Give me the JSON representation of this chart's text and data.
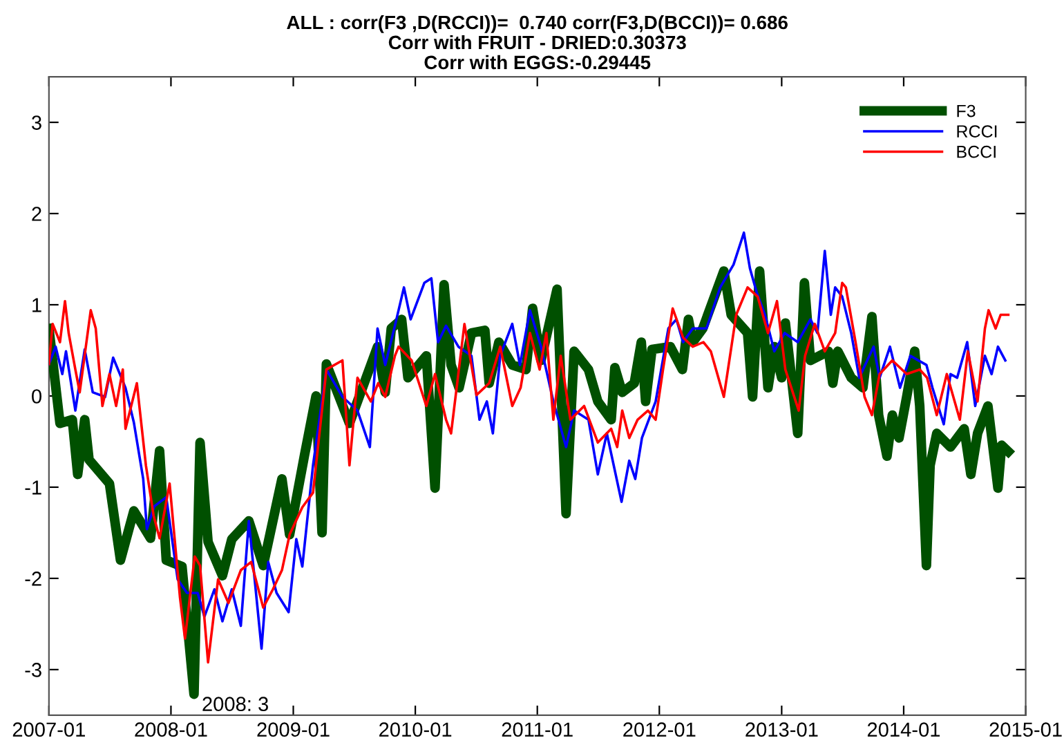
{
  "chart_data": {
    "type": "line",
    "title": "ALL : corr(F3 ,D(RCCI))=  0.740 corr(F3,D(BCCI))= 0.686\nCorr with FRUIT - DRIED:0.30373\nCorr with EGGS:-0.29445",
    "xlim": [
      "2007-01",
      "2015-01"
    ],
    "xticks": [
      "2007-01",
      "2008-01",
      "2009-01",
      "2010-01",
      "2011-01",
      "2012-01",
      "2013-01",
      "2014-01",
      "2015-01"
    ],
    "ylim": [
      -3.5,
      3.5
    ],
    "yticks": [
      -3,
      -2,
      -1,
      0,
      1,
      2,
      3
    ],
    "grid": false,
    "legend": "top right",
    "annotations": [
      {
        "text": "2008: 3",
        "x": "2008-03-10",
        "y": -3.27
      }
    ],
    "series": [
      {
        "name": "F3",
        "color": "#005000",
        "x": [
          "2007-01-01",
          "2007-02-03",
          "2007-03-12",
          "2007-03-28",
          "2007-04-18",
          "2007-05-01",
          "2007-07-01",
          "2007-08-03",
          "2007-09-12",
          "2007-11-01",
          "2007-11-28",
          "2007-12-18",
          "2008-02-03",
          "2008-03-10",
          "2008-03-28",
          "2008-04-21",
          "2008-06-03",
          "2008-07-01",
          "2008-08-21",
          "2008-10-03",
          "2008-11-28",
          "2008-12-21",
          "2009-02-03",
          "2009-03-10",
          "2009-03-28",
          "2009-04-10",
          "2009-06-18",
          "2009-09-10",
          "2009-10-03",
          "2009-10-21",
          "2009-11-21",
          "2009-12-10",
          "2010-02-03",
          "2010-03-01",
          "2010-03-28",
          "2010-04-18",
          "2010-05-12",
          "2010-06-18",
          "2010-07-28",
          "2010-08-10",
          "2010-09-08",
          "2010-10-18",
          "2010-11-28",
          "2010-12-18",
          "2011-01-12",
          "2011-03-01",
          "2011-03-28",
          "2011-04-21",
          "2011-06-03",
          "2011-07-01",
          "2011-08-10",
          "2011-08-21",
          "2011-09-12",
          "2011-10-18",
          "2011-11-08",
          "2011-11-21",
          "2011-12-10",
          "2012-02-03",
          "2012-03-10",
          "2012-03-28",
          "2012-04-10",
          "2012-05-10",
          "2012-07-12",
          "2012-08-03",
          "2012-09-21",
          "2012-10-06",
          "2012-10-27",
          "2012-11-21",
          "2012-12-10",
          "2013-01-01",
          "2013-01-12",
          "2013-02-18",
          "2013-03-10",
          "2013-03-28",
          "2013-05-21",
          "2013-06-03",
          "2013-06-18",
          "2013-07-28",
          "2013-09-01",
          "2013-09-28",
          "2013-10-18",
          "2013-11-12",
          "2013-11-28",
          "2013-12-18",
          "2014-01-10",
          "2014-02-03",
          "2014-02-18",
          "2014-03-10",
          "2014-03-21",
          "2014-04-10",
          "2014-05-21",
          "2014-07-01",
          "2014-07-21",
          "2014-08-10",
          "2014-09-10",
          "2014-10-10",
          "2014-10-21",
          "2014-11-10"
        ],
        "values": [
          0.74,
          -0.3,
          -0.26,
          -0.86,
          -0.26,
          -0.7,
          -0.96,
          -1.8,
          -1.26,
          -1.56,
          -0.6,
          -1.8,
          -1.87,
          -3.27,
          -0.51,
          -1.6,
          -1.97,
          -1.57,
          -1.37,
          -1.86,
          -0.91,
          -1.52,
          -0.66,
          0.0,
          -1.5,
          0.35,
          -0.3,
          0.54,
          0.04,
          0.74,
          0.84,
          0.2,
          0.44,
          -1.01,
          1.22,
          0.34,
          0.09,
          0.69,
          0.72,
          0.14,
          0.59,
          0.34,
          0.29,
          0.96,
          0.39,
          1.17,
          -1.29,
          0.49,
          0.29,
          -0.06,
          -0.26,
          0.31,
          0.04,
          0.14,
          0.59,
          -0.06,
          0.51,
          0.54,
          0.29,
          0.84,
          0.59,
          0.74,
          1.37,
          0.89,
          0.69,
          -0.01,
          1.37,
          0.09,
          0.54,
          0.2,
          0.8,
          -0.41,
          1.24,
          0.39,
          0.49,
          0.14,
          0.49,
          0.2,
          0.09,
          0.87,
          -0.21,
          -0.66,
          -0.21,
          -0.46,
          -0.01,
          0.49,
          -0.11,
          -1.86,
          -0.76,
          -0.41,
          -0.56,
          -0.36,
          -0.86,
          -0.41,
          -0.11,
          -1.01,
          -0.54,
          -0.61
        ]
      },
      {
        "name": "RCCI",
        "color": "#0000ff",
        "x": [
          "2007-01-01",
          "2007-01-21",
          "2007-02-10",
          "2007-02-21",
          "2007-03-21",
          "2007-04-18",
          "2007-05-12",
          "2007-06-18",
          "2007-07-12",
          "2007-08-18",
          "2007-09-12",
          "2007-10-10",
          "2007-10-21",
          "2007-11-12",
          "2007-12-18",
          "2008-01-21",
          "2008-02-18",
          "2008-03-21",
          "2008-04-10",
          "2008-05-10",
          "2008-06-03",
          "2008-07-01",
          "2008-07-28",
          "2008-08-21",
          "2008-09-28",
          "2008-10-18",
          "2008-11-12",
          "2008-12-18",
          "2009-01-10",
          "2009-01-28",
          "2009-03-01",
          "2009-04-10",
          "2009-05-28",
          "2009-07-12",
          "2009-08-18",
          "2009-09-10",
          "2009-10-03",
          "2009-11-01",
          "2009-11-28",
          "2009-12-18",
          "2010-01-28",
          "2010-02-18",
          "2010-03-10",
          "2010-04-03",
          "2010-05-10",
          "2010-06-18",
          "2010-07-12",
          "2010-08-03",
          "2010-08-21",
          "2010-09-12",
          "2010-10-18",
          "2010-11-10",
          "2010-12-10",
          "2011-01-12",
          "2011-02-18",
          "2011-03-28",
          "2011-04-21",
          "2011-06-03",
          "2011-07-01",
          "2011-07-28",
          "2011-09-10",
          "2011-10-03",
          "2011-10-21",
          "2011-11-10",
          "2011-12-21",
          "2012-01-28",
          "2012-02-21",
          "2012-03-12",
          "2012-04-10",
          "2012-05-21",
          "2012-07-01",
          "2012-08-10",
          "2012-09-10",
          "2012-09-28",
          "2012-10-18",
          "2012-11-12",
          "2012-12-10",
          "2013-01-10",
          "2013-02-18",
          "2013-03-28",
          "2013-04-18",
          "2013-05-10",
          "2013-05-28",
          "2013-06-10",
          "2013-07-01",
          "2013-07-28",
          "2013-08-21",
          "2013-10-03",
          "2013-10-21",
          "2013-11-21",
          "2013-12-21",
          "2014-01-21",
          "2014-03-10",
          "2014-03-28",
          "2014-05-01",
          "2014-05-21",
          "2014-06-10",
          "2014-07-10",
          "2014-08-03",
          "2014-09-01",
          "2014-09-21",
          "2014-10-10",
          "2014-11-01"
        ],
        "values": [
          0.35,
          0.54,
          0.24,
          0.49,
          -0.16,
          0.51,
          0.04,
          -0.01,
          0.42,
          0.09,
          -0.29,
          -0.91,
          -1.46,
          -1.21,
          -1.11,
          -2.01,
          -2.16,
          -2.16,
          -2.42,
          -2.12,
          -2.47,
          -2.12,
          -2.52,
          -1.37,
          -2.77,
          -1.82,
          -2.16,
          -2.37,
          -1.57,
          -1.87,
          -0.76,
          0.29,
          -0.01,
          -0.16,
          -0.56,
          0.74,
          0.34,
          0.77,
          1.19,
          0.84,
          1.24,
          1.29,
          0.59,
          0.77,
          0.54,
          0.44,
          -0.26,
          -0.06,
          -0.41,
          0.44,
          0.79,
          0.34,
          0.94,
          0.54,
          -0.06,
          -0.56,
          -0.16,
          -0.26,
          -0.86,
          -0.41,
          -1.16,
          -0.71,
          -0.91,
          -0.46,
          -0.06,
          0.74,
          0.84,
          0.59,
          0.74,
          0.74,
          1.19,
          1.44,
          1.79,
          1.4,
          1.14,
          0.89,
          0.49,
          0.69,
          0.59,
          0.84,
          0.69,
          1.59,
          0.89,
          1.19,
          1.09,
          0.69,
          0.2,
          0.54,
          0.2,
          0.54,
          0.09,
          0.44,
          0.34,
          0.09,
          -0.31,
          0.24,
          0.2,
          0.59,
          -0.11,
          0.44,
          0.24,
          0.54,
          0.39
        ]
      },
      {
        "name": "BCCI",
        "color": "#ff0000",
        "x": [
          "2007-01-01",
          "2007-01-12",
          "2007-02-03",
          "2007-02-18",
          "2007-03-01",
          "2007-03-21",
          "2007-04-03",
          "2007-05-06",
          "2007-05-21",
          "2007-06-10",
          "2007-07-01",
          "2007-07-21",
          "2007-08-10",
          "2007-08-18",
          "2007-09-21",
          "2007-10-18",
          "2007-11-10",
          "2007-11-28",
          "2007-12-28",
          "2008-01-28",
          "2008-02-12",
          "2008-03-12",
          "2008-03-28",
          "2008-04-21",
          "2008-05-21",
          "2008-06-21",
          "2008-07-28",
          "2008-08-28",
          "2008-10-03",
          "2008-11-01",
          "2008-11-28",
          "2008-12-21",
          "2009-01-28",
          "2009-03-01",
          "2009-04-10",
          "2009-05-28",
          "2009-06-18",
          "2009-07-12",
          "2009-08-21",
          "2009-09-12",
          "2009-10-03",
          "2009-11-01",
          "2009-11-12",
          "2009-12-21",
          "2010-02-03",
          "2010-03-01",
          "2010-04-03",
          "2010-04-18",
          "2010-05-28",
          "2010-07-03",
          "2010-08-10",
          "2010-09-12",
          "2010-10-18",
          "2010-11-12",
          "2010-12-10",
          "2011-01-08",
          "2011-01-28",
          "2011-02-18",
          "2011-03-12",
          "2011-04-10",
          "2011-05-21",
          "2011-07-01",
          "2011-08-10",
          "2011-08-28",
          "2011-09-12",
          "2011-10-03",
          "2011-10-28",
          "2011-11-28",
          "2011-12-21",
          "2012-01-12",
          "2012-02-10",
          "2012-03-12",
          "2012-04-10",
          "2012-05-12",
          "2012-06-03",
          "2012-07-12",
          "2012-08-18",
          "2012-09-21",
          "2012-10-21",
          "2012-11-21",
          "2012-12-18",
          "2013-01-12",
          "2013-02-21",
          "2013-03-12",
          "2013-04-10",
          "2013-05-10",
          "2013-06-10",
          "2013-07-01",
          "2013-07-12",
          "2013-08-10",
          "2013-09-06",
          "2013-09-28",
          "2013-10-21",
          "2013-11-28",
          "2014-01-10",
          "2014-02-18",
          "2014-03-12",
          "2014-04-10",
          "2014-05-10",
          "2014-06-18",
          "2014-07-12",
          "2014-08-10",
          "2014-09-01",
          "2014-09-12",
          "2014-10-03",
          "2014-10-18",
          "2014-11-10"
        ],
        "values": [
          0.35,
          0.79,
          0.59,
          1.04,
          0.69,
          0.29,
          0.04,
          0.94,
          0.74,
          -0.11,
          0.24,
          -0.11,
          0.29,
          -0.36,
          0.14,
          -0.76,
          -1.31,
          -1.56,
          -0.96,
          -2.21,
          -2.66,
          -1.76,
          -1.86,
          -2.92,
          -2.01,
          -2.27,
          -1.91,
          -1.82,
          -2.32,
          -2.12,
          -1.91,
          -1.52,
          -1.22,
          -1.06,
          0.29,
          0.39,
          -0.76,
          0.2,
          -0.06,
          0.14,
          -0.01,
          0.44,
          0.54,
          0.39,
          -0.11,
          0.24,
          -0.26,
          -0.41,
          0.79,
          0.01,
          0.14,
          0.54,
          -0.11,
          0.09,
          0.69,
          0.29,
          0.69,
          -0.26,
          0.44,
          -0.26,
          -0.11,
          -0.51,
          -0.36,
          -0.56,
          -0.16,
          -0.46,
          -0.26,
          -0.16,
          -0.26,
          0.29,
          0.96,
          0.64,
          0.54,
          0.59,
          0.49,
          -0.01,
          0.89,
          1.19,
          1.09,
          0.69,
          1.04,
          0.29,
          -0.16,
          0.44,
          0.79,
          0.49,
          0.69,
          1.24,
          1.19,
          0.59,
          -0.01,
          -0.21,
          0.24,
          0.39,
          0.24,
          0.29,
          0.2,
          -0.21,
          0.24,
          -0.26,
          0.49,
          -0.06,
          0.74,
          0.94,
          0.74,
          0.89,
          0.89
        ]
      }
    ]
  }
}
